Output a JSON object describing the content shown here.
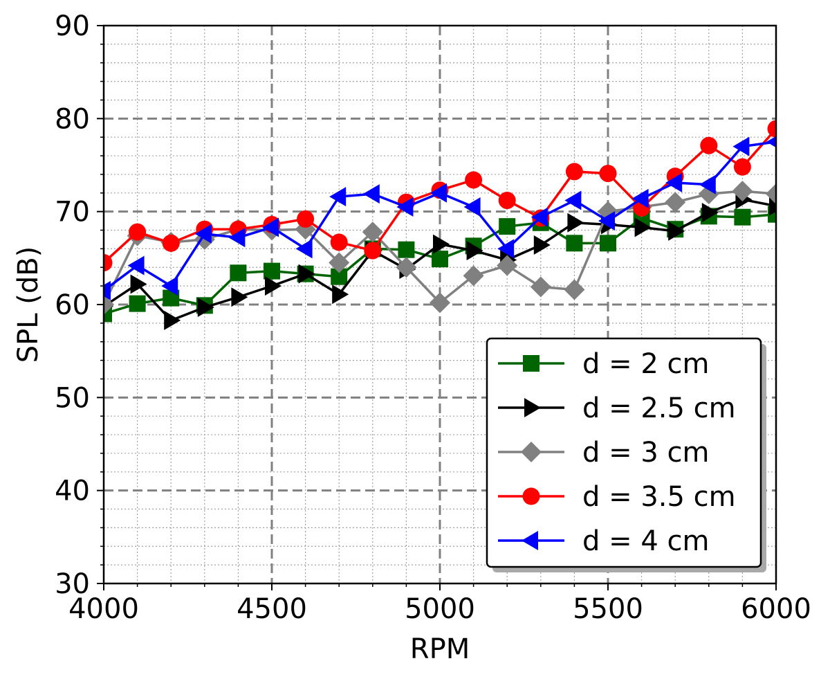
{
  "chart_data": {
    "type": "line",
    "title": "",
    "xlabel": "RPM",
    "ylabel": "SPL (dB)",
    "xlim": [
      4000,
      6000
    ],
    "ylim": [
      30,
      90
    ],
    "xticks": [
      4000,
      4500,
      5000,
      5500,
      6000
    ],
    "yticks": [
      30,
      40,
      50,
      60,
      70,
      80,
      90
    ],
    "grid": {
      "major": "dashed",
      "minor": "dotted"
    },
    "legend_position": "lower-right",
    "x": [
      4000,
      4100,
      4200,
      4300,
      4400,
      4500,
      4600,
      4700,
      4800,
      4900,
      5000,
      5100,
      5200,
      5300,
      5400,
      5500,
      5600,
      5700,
      5800,
      5900,
      6000
    ],
    "series": [
      {
        "name": "d = 2 cm",
        "color": "#006400",
        "marker": "square",
        "values": [
          59.0,
          60.1,
          60.7,
          59.9,
          63.4,
          63.6,
          63.3,
          63.0,
          66.0,
          65.9,
          64.9,
          66.3,
          68.4,
          68.8,
          66.6,
          66.6,
          69.3,
          68.1,
          69.5,
          69.4,
          69.7
        ]
      },
      {
        "name": "d = 2.5 cm",
        "color": "#000000",
        "marker": "triangle-right",
        "values": [
          59.8,
          62.2,
          58.3,
          59.7,
          60.8,
          62.0,
          63.3,
          61.1,
          65.8,
          63.8,
          66.5,
          65.8,
          64.8,
          66.4,
          68.8,
          68.6,
          68.3,
          67.9,
          69.9,
          71.3,
          70.6
        ]
      },
      {
        "name": "d = 3 cm",
        "color": "#808080",
        "marker": "diamond",
        "values": [
          60.0,
          67.4,
          66.7,
          67.0,
          68.1,
          68.0,
          68.1,
          64.5,
          67.8,
          64.0,
          60.2,
          63.1,
          64.2,
          61.9,
          61.6,
          70.0,
          70.5,
          71.0,
          71.9,
          72.2,
          71.9
        ]
      },
      {
        "name": "d = 3.5 cm",
        "color": "#ff0000",
        "marker": "circle",
        "values": [
          64.5,
          67.8,
          66.6,
          68.1,
          68.1,
          68.6,
          69.2,
          66.7,
          65.8,
          71.0,
          72.3,
          73.4,
          71.2,
          69.3,
          74.3,
          74.1,
          70.4,
          73.8,
          77.1,
          74.8,
          78.9
        ]
      },
      {
        "name": "d = 4 cm",
        "color": "#0000ff",
        "marker": "triangle-left",
        "values": [
          61.5,
          64.2,
          62.0,
          67.6,
          67.2,
          68.3,
          66.0,
          71.6,
          71.9,
          70.5,
          72.0,
          70.5,
          66.0,
          69.4,
          71.2,
          69.0,
          71.4,
          73.1,
          72.9,
          77.0,
          77.5
        ]
      }
    ]
  }
}
